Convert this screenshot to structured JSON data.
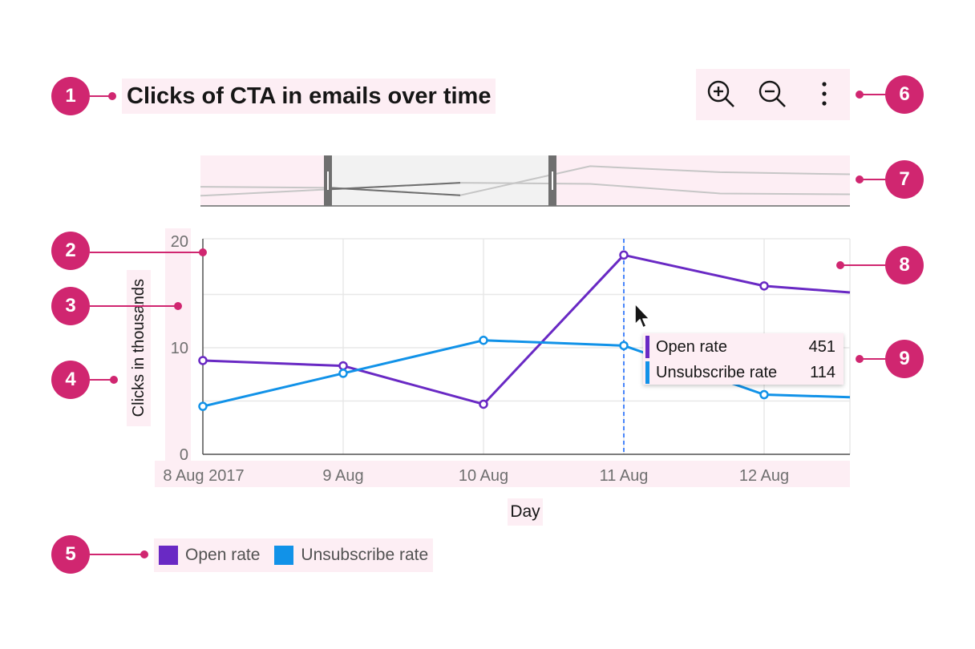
{
  "title": "Clicks of CTA in emails over time",
  "toolbar": {
    "icons": [
      "zoom-in-icon",
      "zoom-out-icon",
      "overflow-menu-icon"
    ]
  },
  "annotations": [
    "1",
    "2",
    "3",
    "4",
    "5",
    "6",
    "7",
    "8",
    "9"
  ],
  "colors": {
    "annotation": "#d02670",
    "highlight": "#fdeef4",
    "open_rate": "#6929c4",
    "unsubscribe_rate": "#1192e8"
  },
  "tooltip": {
    "rows": [
      {
        "label": "Open rate",
        "value": "451",
        "color": "#6929c4"
      },
      {
        "label": "Unsubscribe rate",
        "value": "114",
        "color": "#1192e8"
      }
    ]
  },
  "chart_data": {
    "type": "line",
    "title": "Clicks of CTA in emails over time",
    "xlabel": "Day",
    "ylabel": "Clicks in thousands",
    "x_ticks": [
      "8 Aug 2017",
      "9 Aug",
      "10 Aug",
      "11 Aug",
      "12 Aug"
    ],
    "y_ticks": [
      "0",
      "10",
      "20"
    ],
    "ylim": [
      0,
      20
    ],
    "x": [
      "2017-08-08",
      "2017-08-09",
      "2017-08-10",
      "2017-08-11",
      "2017-08-12",
      "2017-08-13"
    ],
    "series": [
      {
        "name": "Open rate",
        "color": "#6929c4",
        "values": [
          8.8,
          8.3,
          4.7,
          18.7,
          15.8,
          14.8
        ]
      },
      {
        "name": "Unsubscribe rate",
        "color": "#1192e8",
        "values": [
          4.5,
          7.6,
          10.7,
          10.2,
          5.6,
          5.2
        ]
      }
    ],
    "highlighted_x": "2017-08-11",
    "grid": true,
    "legend": "bottom-left"
  },
  "zoom_bar": {
    "selection": [
      "2017-08-09",
      "2017-08-10"
    ]
  }
}
